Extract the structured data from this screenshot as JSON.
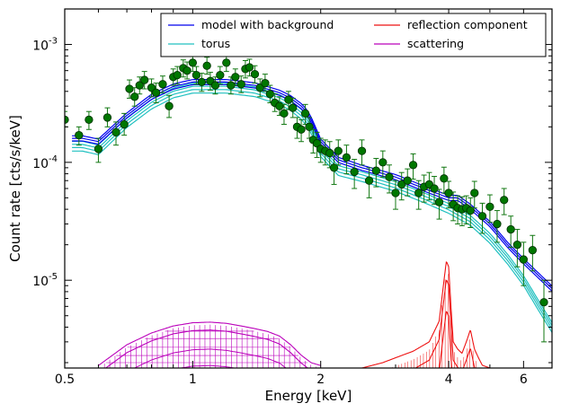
{
  "chart_data": {
    "type": "line",
    "xlabel": "Energy [keV]",
    "ylabel": "Count rate [cts/s/keV]",
    "x_scale": "log",
    "y_scale": "log",
    "xlim": [
      0.5,
      7.0
    ],
    "ylim": [
      1.8e-06,
      0.002
    ],
    "grid": false,
    "legend_position": "top-right",
    "x_ticks": [
      {
        "value": 0.5,
        "label": "0.5"
      },
      {
        "value": 1,
        "label": "1"
      },
      {
        "value": 2,
        "label": "2"
      },
      {
        "value": 4,
        "label": "4"
      },
      {
        "value": 6,
        "label": "6"
      }
    ],
    "y_ticks": [
      {
        "value": 1e-05,
        "base": "10",
        "exp": "-5"
      },
      {
        "value": 0.0001,
        "base": "10",
        "exp": "-4"
      },
      {
        "value": 0.001,
        "base": "10",
        "exp": "-3"
      }
    ],
    "legend": [
      {
        "label": "model with background",
        "color": "#0000ee"
      },
      {
        "label": "torus",
        "color": "#20c0c0"
      },
      {
        "label": "reflection component",
        "color": "#ee1111"
      },
      {
        "label": "scattering",
        "color": "#bb00bb"
      }
    ],
    "colors": {
      "model": "#0000ee",
      "torus": "#20c0c0",
      "reflection": "#ee1111",
      "scattering": "#bb00bb",
      "data": "#007700",
      "errorbar": "#117711"
    },
    "series": [
      {
        "name": "model with background",
        "x": [
          0.52,
          0.55,
          0.6,
          0.7,
          0.8,
          0.9,
          1.0,
          1.2,
          1.4,
          1.6,
          1.7,
          1.8,
          1.85,
          1.9,
          2.0,
          2.2,
          2.5,
          3.0,
          3.5,
          4.0,
          4.2,
          4.5,
          5.0,
          5.5,
          6.0,
          6.5,
          7.0
        ],
        "y": [
          0.00016,
          0.00016,
          0.00015,
          0.00025,
          0.00036,
          0.00044,
          0.00048,
          0.00048,
          0.00045,
          0.00039,
          0.00035,
          0.0003,
          0.00027,
          0.00023,
          0.00015,
          0.000105,
          9e-05,
          7.5e-05,
          6e-05,
          5e-05,
          5e-05,
          4.2e-05,
          3e-05,
          2e-05,
          1.45e-05,
          1.1e-05,
          8.5e-06
        ]
      },
      {
        "name": "torus",
        "x": [
          0.52,
          0.55,
          0.6,
          0.7,
          0.8,
          0.9,
          1.0,
          1.2,
          1.4,
          1.6,
          1.7,
          1.8,
          1.85,
          1.9,
          2.0,
          2.2,
          2.5,
          3.0,
          3.5,
          4.0,
          4.5,
          5.0,
          5.5,
          6.0,
          6.5,
          7.0
        ],
        "y": [
          0.000145,
          0.000145,
          0.000135,
          0.00023,
          0.00033,
          0.00041,
          0.00045,
          0.00045,
          0.00042,
          0.00036,
          0.00032,
          0.00027,
          0.00024,
          0.000205,
          0.00013,
          9e-05,
          8e-05,
          6.6e-05,
          5.3e-05,
          4.3e-05,
          3.4e-05,
          2.4e-05,
          1.6e-05,
          1.05e-05,
          6.5e-06,
          4.2e-06
        ]
      },
      {
        "name": "reflection component",
        "x": [
          2.5,
          2.8,
          3.0,
          3.3,
          3.6,
          3.8,
          3.9,
          3.95,
          4.0,
          4.05,
          4.1,
          4.2,
          4.3,
          4.4,
          4.5,
          4.6,
          4.7,
          4.8,
          5.0
        ],
        "y": [
          1.8e-06,
          2e-06,
          2.2e-06,
          2.5e-06,
          3e-06,
          4.5e-06,
          1e-05,
          1.45e-05,
          1.3e-05,
          6e-06,
          3e-06,
          2.6e-06,
          2.4e-06,
          3e-06,
          3.8e-06,
          2.6e-06,
          2.2e-06,
          1.9e-06,
          1.8e-06
        ]
      },
      {
        "name": "scattering",
        "x": [
          0.6,
          0.7,
          0.8,
          0.9,
          1.0,
          1.1,
          1.2,
          1.3,
          1.4,
          1.5,
          1.6,
          1.7,
          1.8,
          1.9,
          2.0
        ],
        "y": [
          1.8e-06,
          2.7e-06,
          3.4e-06,
          3.9e-06,
          4.15e-06,
          4.2e-06,
          4.1e-06,
          3.9e-06,
          3.7e-06,
          3.5e-06,
          3.2e-06,
          2.7e-06,
          2.2e-06,
          1.9e-06,
          1.8e-06
        ]
      },
      {
        "name": "data",
        "points": [
          [
            0.5,
            0.00023,
            0.0002,
            0.00027
          ],
          [
            0.54,
            0.00017,
            0.00014,
            0.0002
          ],
          [
            0.57,
            0.00023,
            0.00019,
            0.00027
          ],
          [
            0.6,
            0.00013,
            0.0001,
            0.00016
          ],
          [
            0.63,
            0.00024,
            0.0002,
            0.00029
          ],
          [
            0.66,
            0.00018,
            0.00014,
            0.00022
          ],
          [
            0.69,
            0.00021,
            0.00017,
            0.00026
          ],
          [
            0.71,
            0.00042,
            0.00035,
            0.0005
          ],
          [
            0.73,
            0.00036,
            0.0003,
            0.00043
          ],
          [
            0.75,
            0.00045,
            0.00038,
            0.00053
          ],
          [
            0.77,
            0.0005,
            0.00042,
            0.00059
          ],
          [
            0.8,
            0.00043,
            0.00036,
            0.00051
          ],
          [
            0.82,
            0.00039,
            0.00032,
            0.00047
          ],
          [
            0.85,
            0.00046,
            0.00039,
            0.00054
          ],
          [
            0.88,
            0.0003,
            0.00024,
            0.00037
          ],
          [
            0.9,
            0.00053,
            0.00045,
            0.00062
          ],
          [
            0.92,
            0.00055,
            0.00046,
            0.00065
          ],
          [
            0.95,
            0.00063,
            0.00053,
            0.00074
          ],
          [
            0.97,
            0.0006,
            0.00051,
            0.00071
          ],
          [
            1.0,
            0.0007,
            0.00059,
            0.00082
          ],
          [
            1.02,
            0.00055,
            0.00046,
            0.00065
          ],
          [
            1.05,
            0.00048,
            0.0004,
            0.00057
          ],
          [
            1.08,
            0.00066,
            0.00056,
            0.00078
          ],
          [
            1.1,
            0.00049,
            0.00041,
            0.00058
          ],
          [
            1.13,
            0.00045,
            0.00038,
            0.00053
          ],
          [
            1.16,
            0.00055,
            0.00046,
            0.00065
          ],
          [
            1.2,
            0.0007,
            0.00059,
            0.00082
          ],
          [
            1.23,
            0.00045,
            0.00038,
            0.00053
          ],
          [
            1.26,
            0.00053,
            0.00045,
            0.00062
          ],
          [
            1.3,
            0.00046,
            0.00039,
            0.00054
          ],
          [
            1.33,
            0.00062,
            0.00052,
            0.00073
          ],
          [
            1.36,
            0.00064,
            0.00054,
            0.00075
          ],
          [
            1.4,
            0.00056,
            0.00047,
            0.00066
          ],
          [
            1.44,
            0.00043,
            0.00036,
            0.00051
          ],
          [
            1.48,
            0.00047,
            0.0004,
            0.00056
          ],
          [
            1.52,
            0.00038,
            0.00032,
            0.00045
          ],
          [
            1.56,
            0.00032,
            0.00027,
            0.00038
          ],
          [
            1.6,
            0.0003,
            0.00025,
            0.00036
          ],
          [
            1.64,
            0.00026,
            0.00021,
            0.00031
          ],
          [
            1.68,
            0.00034,
            0.00028,
            0.0004
          ],
          [
            1.72,
            0.00029,
            0.00024,
            0.00035
          ],
          [
            1.76,
            0.0002,
            0.00016,
            0.00024
          ],
          [
            1.8,
            0.00019,
            0.00015,
            0.00023
          ],
          [
            1.84,
            0.00026,
            0.00021,
            0.00031
          ],
          [
            1.88,
            0.0002,
            0.00016,
            0.00024
          ],
          [
            1.92,
            0.000155,
            0.00012,
            0.00019
          ],
          [
            1.96,
            0.000145,
            0.00011,
            0.00018
          ],
          [
            2.0,
            0.00013,
            0.0001,
            0.00016
          ],
          [
            2.05,
            0.000125,
            9.5e-05,
            0.000155
          ],
          [
            2.1,
            0.00012,
            9e-05,
            0.00015
          ],
          [
            2.15,
            9e-05,
            6.5e-05,
            0.000115
          ],
          [
            2.2,
            0.000125,
            9.5e-05,
            0.000155
          ],
          [
            2.3,
            0.00011,
            8e-05,
            0.00014
          ],
          [
            2.4,
            8.3e-05,
            6e-05,
            0.000106
          ],
          [
            2.5,
            0.000125,
            9.5e-05,
            0.000155
          ],
          [
            2.6,
            7e-05,
            5e-05,
            9e-05
          ],
          [
            2.7,
            8.5e-05,
            6.2e-05,
            0.000108
          ],
          [
            2.8,
            0.0001,
            7.5e-05,
            0.000125
          ],
          [
            2.9,
            7.5e-05,
            5.5e-05,
            9.5e-05
          ],
          [
            3.0,
            5.5e-05,
            4e-05,
            7e-05
          ],
          [
            3.1,
            6.5e-05,
            4.8e-05,
            8.2e-05
          ],
          [
            3.2,
            7e-05,
            5.2e-05,
            8.8e-05
          ],
          [
            3.3,
            9.5e-05,
            7.2e-05,
            0.000118
          ],
          [
            3.4,
            5.5e-05,
            4e-05,
            7e-05
          ],
          [
            3.5,
            6.2e-05,
            4.6e-05,
            7.8e-05
          ],
          [
            3.6,
            6.5e-05,
            4.8e-05,
            8.2e-05
          ],
          [
            3.7,
            6e-05,
            4.4e-05,
            7.6e-05
          ],
          [
            3.8,
            4.6e-05,
            3.3e-05,
            5.9e-05
          ],
          [
            3.9,
            7.3e-05,
            5.5e-05,
            9.1e-05
          ],
          [
            4.0,
            5.5e-05,
            4.1e-05,
            6.9e-05
          ],
          [
            4.1,
            4.4e-05,
            3.2e-05,
            5.6e-05
          ],
          [
            4.2,
            4.1e-05,
            3e-05,
            5.2e-05
          ],
          [
            4.3,
            4e-05,
            2.9e-05,
            5.1e-05
          ],
          [
            4.4,
            4.1e-05,
            3e-05,
            5.2e-05
          ],
          [
            4.5,
            3.9e-05,
            2.8e-05,
            5e-05
          ],
          [
            4.6,
            5.5e-05,
            4.1e-05,
            6.9e-05
          ],
          [
            4.8,
            3.5e-05,
            2.5e-05,
            4.5e-05
          ],
          [
            5.0,
            4.2e-05,
            3.1e-05,
            5.3e-05
          ],
          [
            5.2,
            3e-05,
            2.1e-05,
            3.9e-05
          ],
          [
            5.4,
            4.8e-05,
            3.6e-05,
            6e-05
          ],
          [
            5.6,
            2.7e-05,
            1.9e-05,
            3.5e-05
          ],
          [
            5.8,
            2e-05,
            1.3e-05,
            2.7e-05
          ],
          [
            6.0,
            1.5e-05,
            9e-06,
            2.1e-05
          ],
          [
            6.3,
            1.8e-05,
            1.2e-05,
            2.4e-05
          ],
          [
            6.7,
            6.5e-06,
            3e-06,
            1e-05
          ]
        ]
      }
    ]
  }
}
